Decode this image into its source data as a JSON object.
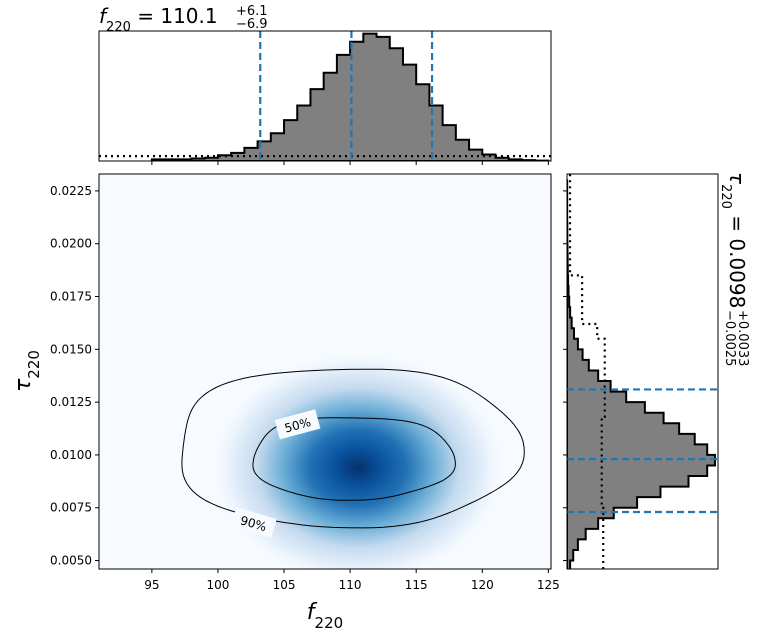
{
  "chart_data": [
    {
      "type": "histogram",
      "panel": "top-marginal",
      "title_symbol": "f",
      "title_subscript": "220",
      "title_value": " = 110.1",
      "title_sup": "+6.1",
      "title_sub": "−6.9",
      "x_range": [
        91,
        125.2
      ],
      "quantiles": [
        103.2,
        110.1,
        116.2
      ],
      "bins_x": [
        95,
        96,
        97,
        98,
        99,
        100,
        101,
        102,
        103,
        104,
        105,
        106,
        107,
        108,
        109,
        110,
        111,
        112,
        113,
        114,
        115,
        116,
        117,
        118,
        119,
        120,
        121,
        122,
        123,
        124,
        125
      ],
      "density": [
        0.01,
        0.01,
        0.01,
        0.015,
        0.02,
        0.035,
        0.05,
        0.08,
        0.12,
        0.17,
        0.25,
        0.34,
        0.44,
        0.54,
        0.65,
        0.73,
        0.78,
        0.76,
        0.69,
        0.59,
        0.47,
        0.34,
        0.22,
        0.13,
        0.07,
        0.04,
        0.02,
        0.01,
        0.005,
        0.002
      ],
      "prior_level": 0.03,
      "prior_style": "dotted",
      "quantile_style": "dashed",
      "colors": {
        "fill": "#808080",
        "edge": "#000000",
        "quantile": "#1f77b4"
      }
    },
    {
      "type": "heatmap",
      "panel": "joint-2d",
      "xlabel_symbol": "f",
      "xlabel_subscript": "220",
      "ylabel_symbol": "τ",
      "ylabel_subscript": "220",
      "xlim": [
        91,
        125.2
      ],
      "ylim": [
        0.0046,
        0.0233
      ],
      "x_ticks": [
        95,
        100,
        105,
        110,
        115,
        120,
        125
      ],
      "x_tick_labels": [
        "95",
        "100",
        "105",
        "110",
        "115",
        "120",
        "125"
      ],
      "y_ticks": [
        0.005,
        0.0075,
        0.01,
        0.0125,
        0.015,
        0.0175,
        0.02,
        0.0225
      ],
      "y_tick_labels": [
        "0.0050",
        "0.0075",
        "0.0100",
        "0.0125",
        "0.0150",
        "0.0175",
        "0.0200",
        "0.0225"
      ],
      "peak": {
        "x": 110.6,
        "y": 0.0094
      },
      "contours": [
        {
          "label": "50%",
          "x_range": [
            102.6,
            117.8
          ],
          "y_range": [
            0.0079,
            0.0118
          ]
        },
        {
          "label": "90%",
          "x_range": [
            96.9,
            122.7
          ],
          "y_range": [
            0.0066,
            0.0141
          ]
        }
      ],
      "colormap": "Blues"
    },
    {
      "type": "histogram",
      "panel": "right-marginal",
      "orientation": "horizontal",
      "title_symbol": "τ",
      "title_subscript": "220",
      "title_value": " = 0.0098",
      "title_sup": "+0.0033",
      "title_sub": "−0.0025",
      "y_range": [
        0.0046,
        0.0233
      ],
      "quantiles": [
        0.0073,
        0.0098,
        0.0131
      ],
      "bins_y": [
        0.0045,
        0.005,
        0.0055,
        0.006,
        0.0065,
        0.007,
        0.0075,
        0.008,
        0.0085,
        0.009,
        0.0095,
        0.01,
        0.0105,
        0.011,
        0.0115,
        0.012,
        0.0125,
        0.013,
        0.0135,
        0.014,
        0.0145,
        0.015,
        0.0155,
        0.016,
        0.0165,
        0.017,
        0.0175,
        0.018,
        0.0185,
        0.019,
        0.0195,
        0.02,
        0.0205,
        0.021,
        0.0215,
        0.022,
        0.0225,
        0.023
      ],
      "density": [
        0.02,
        0.04,
        0.07,
        0.12,
        0.2,
        0.3,
        0.45,
        0.6,
        0.78,
        0.9,
        0.95,
        0.9,
        0.82,
        0.72,
        0.62,
        0.5,
        0.38,
        0.28,
        0.2,
        0.14,
        0.1,
        0.07,
        0.045,
        0.03,
        0.02,
        0.014,
        0.01,
        0.007,
        0.005,
        0.004,
        0.003,
        0.002,
        0.002,
        0.001,
        0.001,
        0.001,
        0.001
      ],
      "prior_steps": [
        {
          "y_from": 0.0046,
          "y_to": 0.0075,
          "level": 0.24
        },
        {
          "y_from": 0.0075,
          "y_to": 0.0118,
          "level": 0.23
        },
        {
          "y_from": 0.0118,
          "y_to": 0.0155,
          "level": 0.25
        },
        {
          "y_from": 0.0155,
          "y_to": 0.0162,
          "level": 0.2
        },
        {
          "y_from": 0.0162,
          "y_to": 0.0185,
          "level": 0.1
        },
        {
          "y_from": 0.0185,
          "y_to": 0.0233,
          "level": 0.02
        }
      ],
      "colors": {
        "fill": "#808080",
        "edge": "#000000",
        "quantile": "#1f77b4"
      }
    }
  ]
}
